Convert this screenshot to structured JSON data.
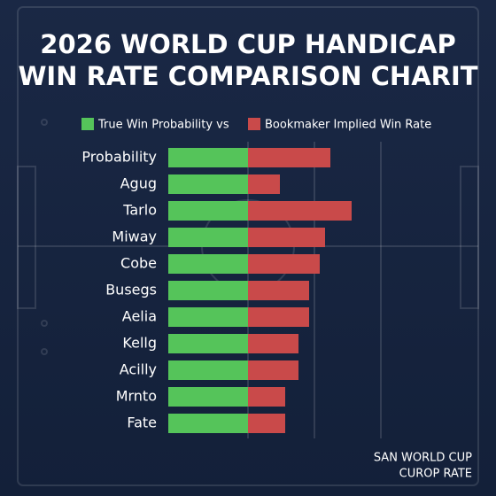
{
  "chart_data": {
    "type": "stacked_bar_horizontal",
    "title": [
      "2026 WORLD CUP HANDICAP",
      "WIN RATE COMPARISON CHARIT"
    ],
    "categories": [
      "Probability",
      "Agug",
      "Tarlo",
      "Miway",
      "Cobe",
      "Busegs",
      "Aelia",
      "Kellg",
      "Acilly",
      "Mrnto",
      "Fate"
    ],
    "series": [
      {
        "name": "True Win Probability vs",
        "color": "#55c45a",
        "values": [
          30,
          30,
          30,
          30,
          30,
          30,
          30,
          30,
          30,
          30,
          30
        ]
      },
      {
        "name": "Bookmaker Implied Win Rate",
        "color": "#c94a4a",
        "values": [
          31,
          12,
          39,
          29,
          27,
          23,
          23,
          19,
          19,
          14,
          14
        ]
      }
    ],
    "xlim": [
      0,
      120
    ],
    "annotation": [
      "SAN WORLD CUP",
      "CUROP RATE"
    ]
  }
}
